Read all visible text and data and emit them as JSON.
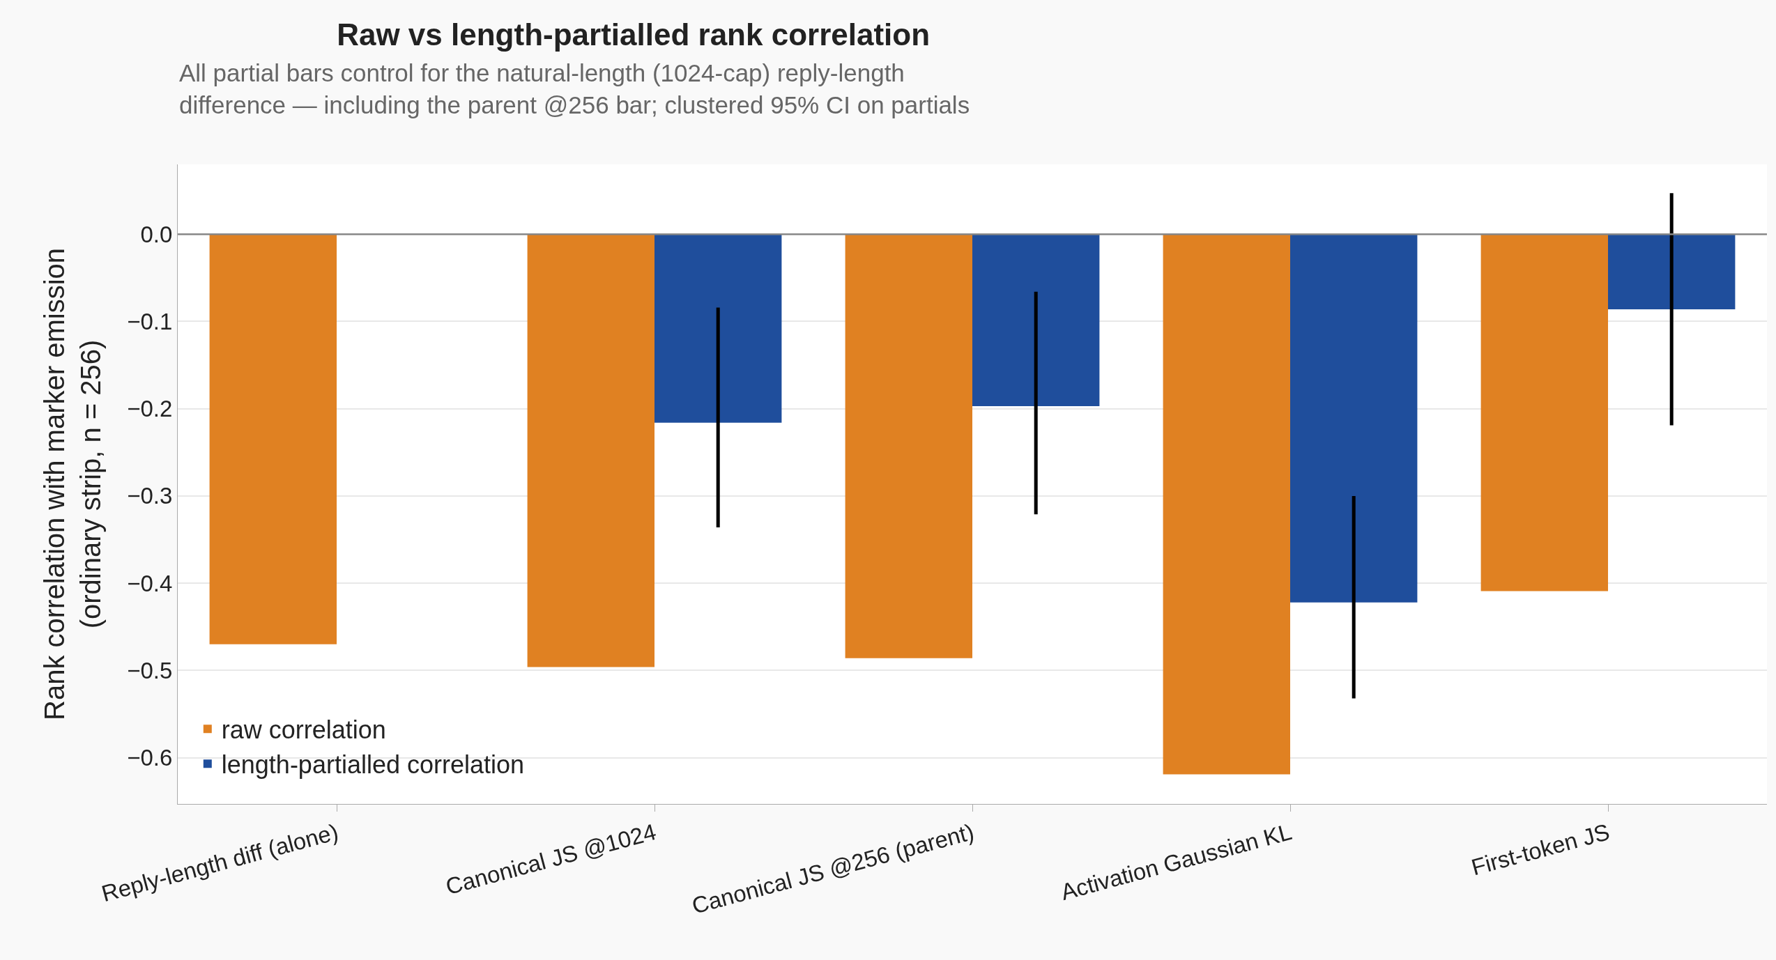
{
  "chart_data": {
    "type": "bar",
    "title": "Raw vs length-partialled rank correlation",
    "subtitle": "All partial bars control for the natural-length (1024-cap) reply-length difference — including the parent @256 bar; clustered 95% CI on partials",
    "ylabel": "Rank correlation with marker emission (ordinary strip, n = 256)",
    "categories": [
      "Reply-length diff (alone)",
      "Canonical JS @1024",
      "Canonical JS @256 (parent)",
      "Activation Gaussian KL",
      "First-token JS"
    ],
    "series": [
      {
        "name": "raw correlation",
        "color": "#e08122",
        "values": [
          -0.47,
          -0.496,
          -0.486,
          -0.619,
          -0.409
        ]
      },
      {
        "name": "length-partialled correlation",
        "color": "#1f4e9c",
        "values": [
          null,
          -0.216,
          -0.197,
          -0.422,
          -0.086
        ],
        "errors": [
          null,
          [
            -0.336,
            -0.084
          ],
          [
            -0.321,
            -0.066
          ],
          [
            -0.532,
            -0.3
          ],
          [
            -0.219,
            0.047
          ]
        ]
      }
    ],
    "ylim": [
      -0.653,
      0.08
    ],
    "yticks": [
      {
        "value": 0,
        "label": "0.0"
      },
      {
        "value": -0.1,
        "label": "−0.1"
      },
      {
        "value": -0.2,
        "label": "−0.2"
      },
      {
        "value": -0.3,
        "label": "−0.3"
      },
      {
        "value": -0.4,
        "label": "−0.4"
      },
      {
        "value": -0.5,
        "label": "−0.5"
      },
      {
        "value": -0.6,
        "label": "−0.6"
      }
    ],
    "ref_lines": [
      {
        "axis": "y",
        "value": 0,
        "color": "#888888"
      }
    ],
    "grid": "y",
    "legend": "bottom left"
  }
}
